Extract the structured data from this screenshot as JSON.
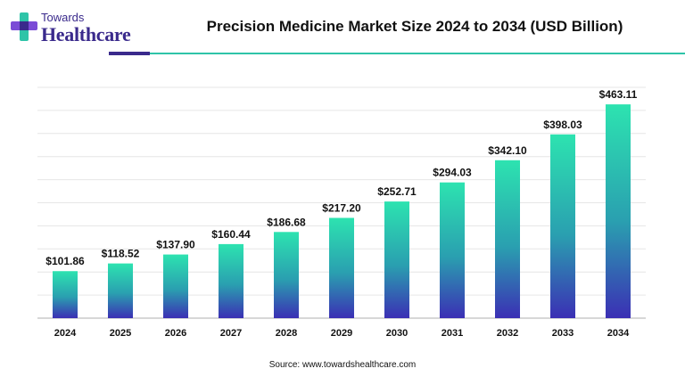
{
  "brand": {
    "logo_top": "Towards",
    "logo_main": "Healthcare",
    "colors": {
      "primary": "#3a2a8c",
      "accent": "#2ec4a8"
    }
  },
  "source": "Source: www.towardshealthcare.com",
  "chart_data": {
    "type": "bar",
    "title": "Precision Medicine Market Size 2024 to 2034 (USD Billion)",
    "xlabel": "",
    "ylabel": "",
    "categories": [
      "2024",
      "2025",
      "2026",
      "2027",
      "2028",
      "2029",
      "2030",
      "2031",
      "2032",
      "2033",
      "2034"
    ],
    "values": [
      101.86,
      118.52,
      137.9,
      160.44,
      186.68,
      217.2,
      252.71,
      294.03,
      342.1,
      398.03,
      463.11
    ],
    "value_labels": [
      "$101.86",
      "$118.52",
      "$137.90",
      "$160.44",
      "$186.68",
      "$217.20",
      "$252.71",
      "$294.03",
      "$342.10",
      "$398.03",
      "$463.11"
    ],
    "ylim": [
      0,
      500
    ],
    "grid": true,
    "bar_gradient": {
      "top": "#2de3b0",
      "bottom": "#3b2fb4"
    }
  }
}
